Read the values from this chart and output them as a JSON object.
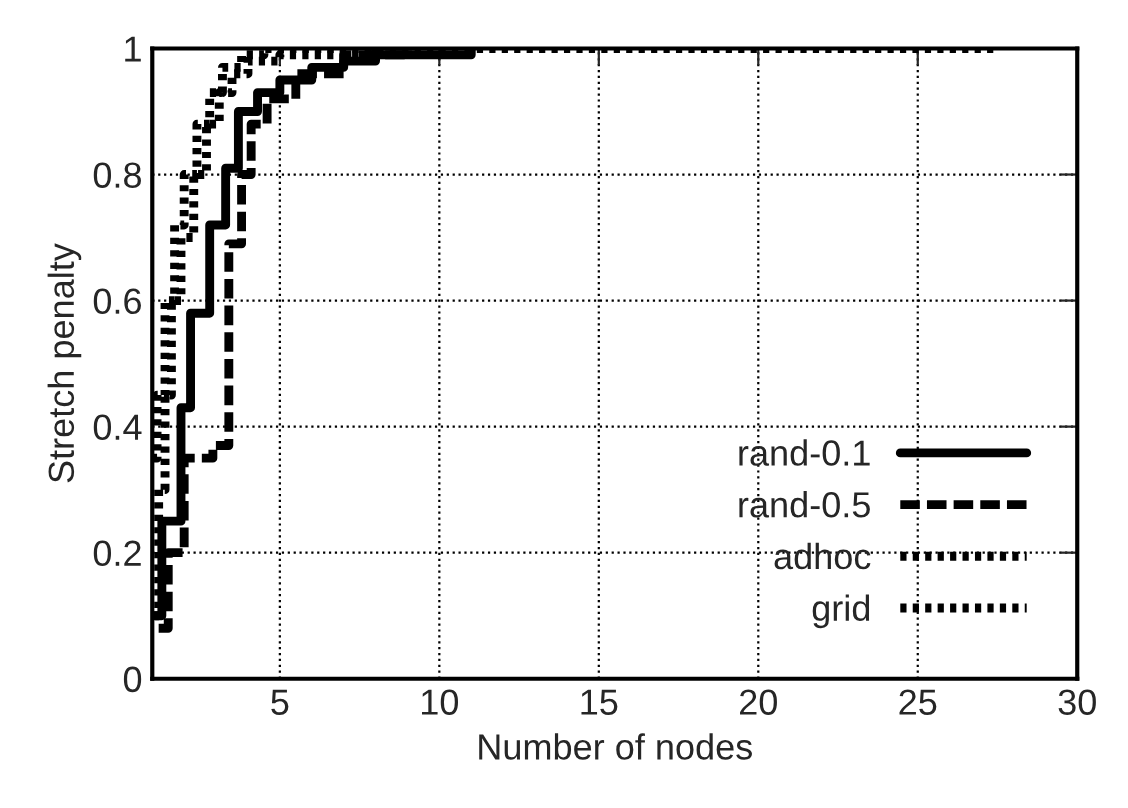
{
  "chart_data": {
    "type": "step",
    "xlabel": "Number of nodes",
    "ylabel": "Stretch penalty",
    "xlim": [
      1,
      30
    ],
    "ylim": [
      0,
      1
    ],
    "xticks": [
      5,
      10,
      15,
      20,
      25,
      30
    ],
    "yticks": [
      0,
      0.2,
      0.4,
      0.6,
      0.8,
      1
    ],
    "grid": true,
    "legend": "bottom right",
    "series": [
      {
        "name": "rand-0.1",
        "color": "#000000",
        "line_style": "solid",
        "x": [
          1.1,
          1.3,
          1.9,
          2.2,
          2.8,
          3.3,
          3.7,
          4.3,
          5,
          6,
          7,
          8,
          11
        ],
        "values": [
          0.1,
          0.25,
          0.43,
          0.58,
          0.72,
          0.81,
          0.9,
          0.93,
          0.95,
          0.97,
          0.98,
          0.99,
          1
        ]
      },
      {
        "name": "rand-0.5",
        "color": "#000000",
        "line_style": "dashed",
        "x": [
          1.2,
          1.5,
          2.0,
          2.9,
          3.4,
          3.8,
          4.1,
          4.6,
          5.5,
          7,
          9
        ],
        "values": [
          0.08,
          0.2,
          0.35,
          0.37,
          0.69,
          0.8,
          0.88,
          0.92,
          0.96,
          0.99,
          1
        ]
      },
      {
        "name": "adhoc",
        "color": "#000000",
        "line_style": "dotted",
        "x": [
          1.05,
          1.2,
          1.4,
          1.6,
          1.9,
          2.3,
          2.7,
          3.1,
          3.5,
          4,
          5,
          8
        ],
        "values": [
          0.1,
          0.3,
          0.45,
          0.6,
          0.7,
          0.8,
          0.88,
          0.93,
          0.96,
          0.98,
          0.99,
          1
        ]
      },
      {
        "name": "grid",
        "color": "#000000",
        "line_style": "dotted",
        "x": [
          1.0,
          1.15,
          1.4,
          1.7,
          2.0,
          2.4,
          2.8,
          3.2,
          3.8,
          4.5,
          27.5
        ],
        "values": [
          0.35,
          0.45,
          0.6,
          0.72,
          0.8,
          0.88,
          0.93,
          0.97,
          0.99,
          1,
          1
        ]
      }
    ]
  }
}
